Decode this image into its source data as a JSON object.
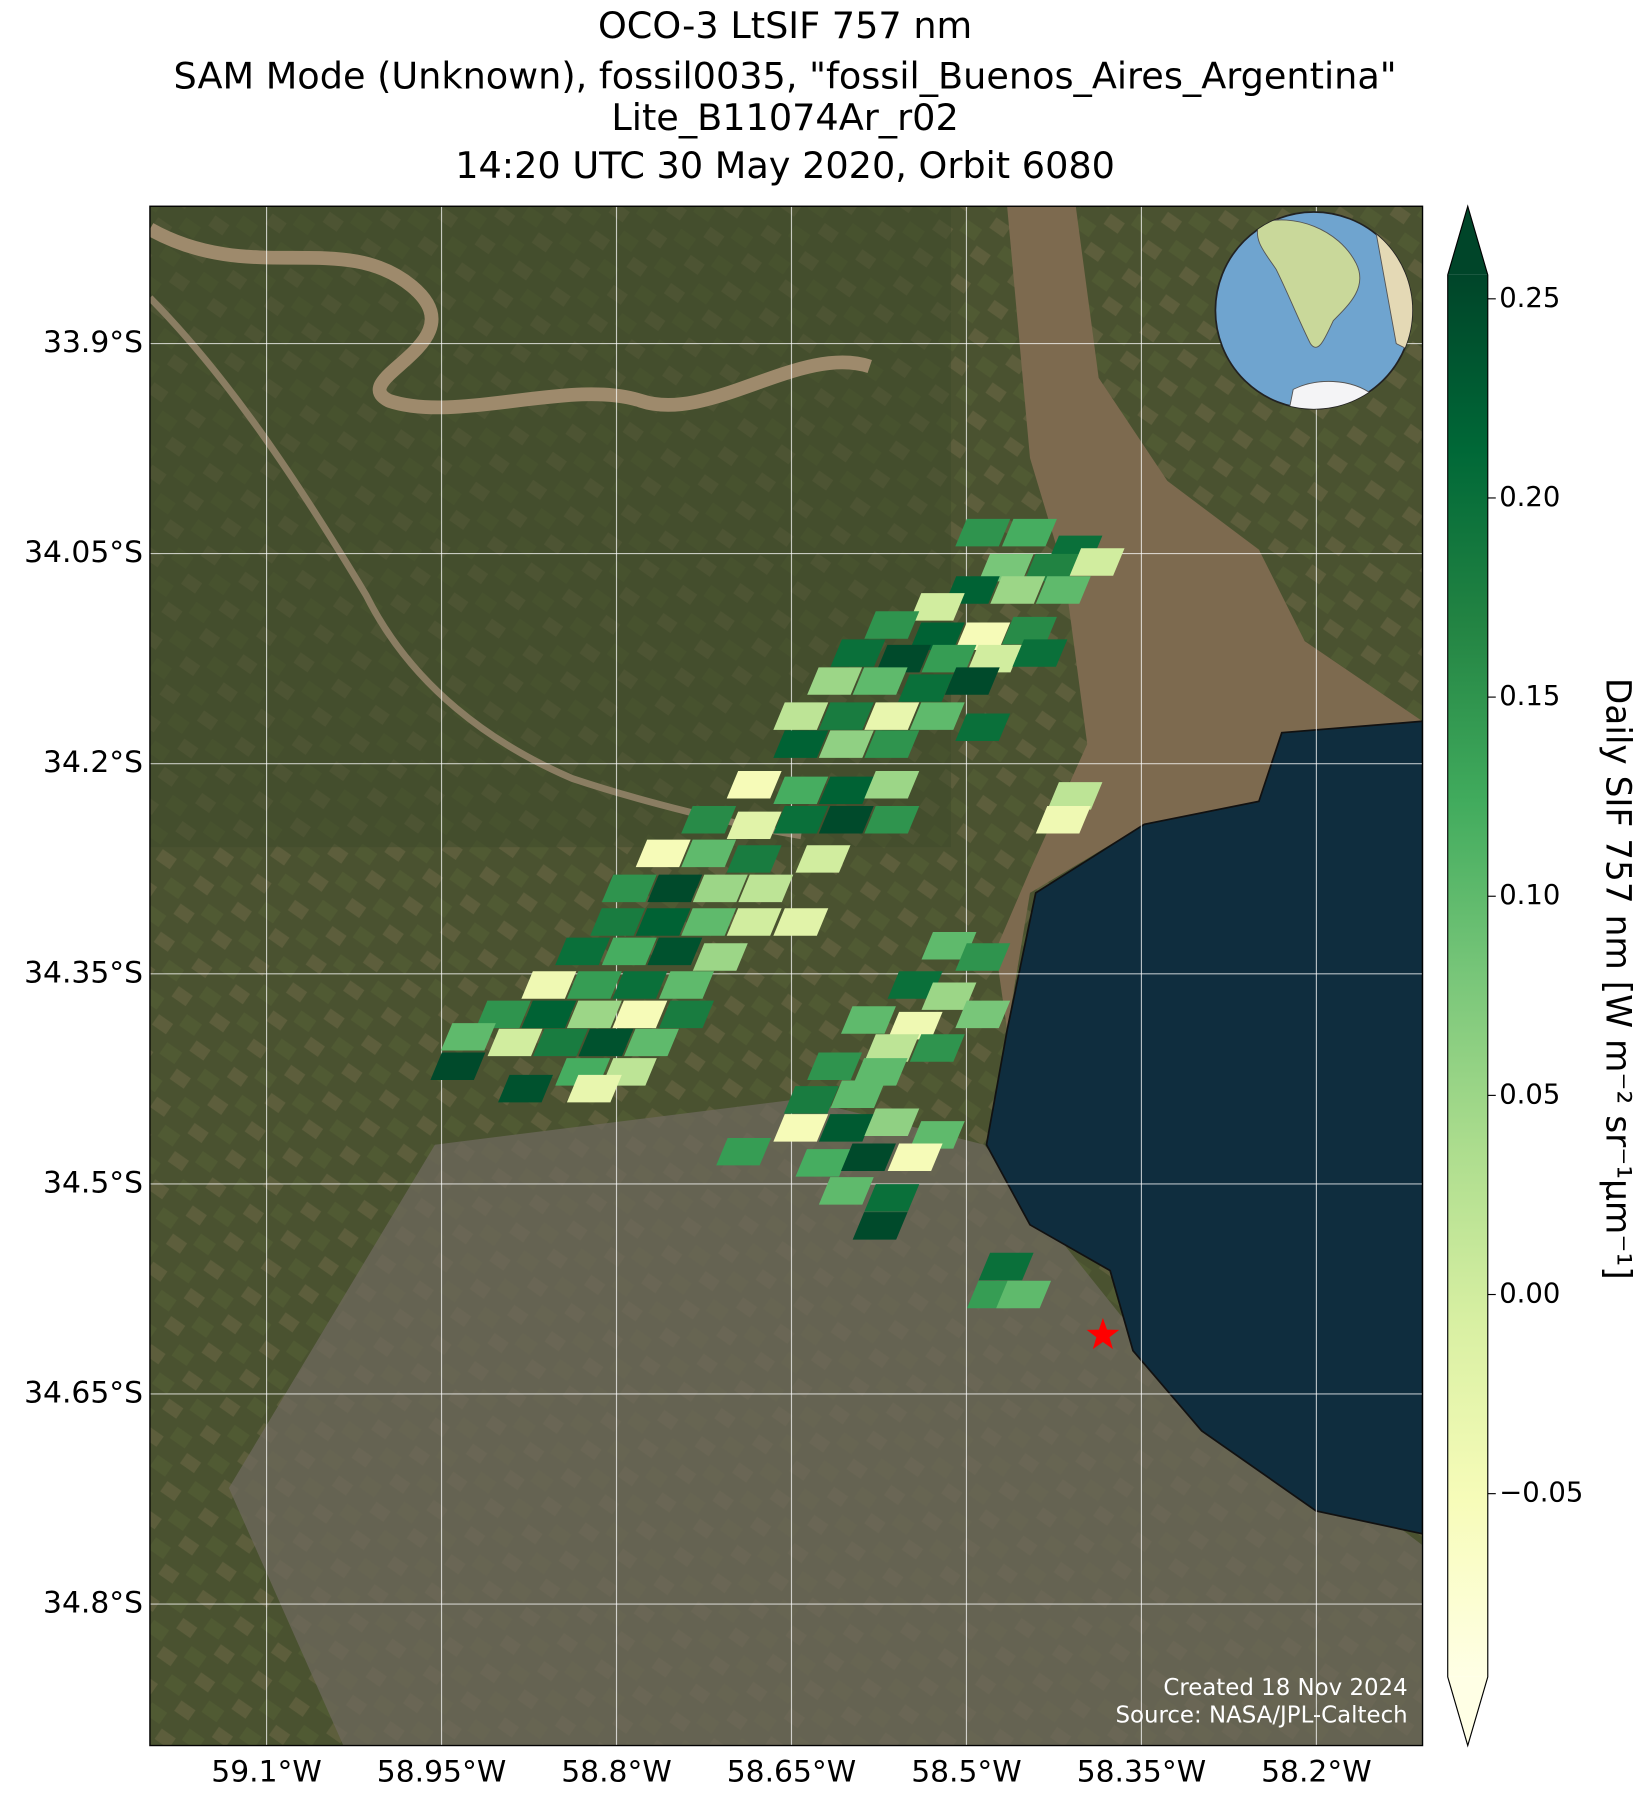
{
  "chart_data": {
    "type": "map",
    "title": [
      "OCO-3 LtSIF 757 nm",
      "SAM Mode (Unknown), fossil0035, \"fossil_Buenos_Aires_Argentina\"",
      "Lite_B11074Ar_r02",
      "14:20 UTC 30 May 2020, Orbit 6080"
    ],
    "xlim": [
      -59.2,
      -58.109
    ],
    "ylim": [
      -34.901,
      -33.802
    ],
    "grid": true,
    "xticks": [
      {
        "value": -59.1,
        "label": "59.1°W"
      },
      {
        "value": -58.95,
        "label": "58.95°W"
      },
      {
        "value": -58.8,
        "label": "58.8°W"
      },
      {
        "value": -58.65,
        "label": "58.65°W"
      },
      {
        "value": -58.5,
        "label": "58.5°W"
      },
      {
        "value": -58.35,
        "label": "58.35°W"
      },
      {
        "value": -58.2,
        "label": "58.2°W"
      }
    ],
    "yticks": [
      {
        "value": -33.9,
        "label": "33.9°S"
      },
      {
        "value": -34.05,
        "label": "34.05°S"
      },
      {
        "value": -34.2,
        "label": "34.2°S"
      },
      {
        "value": -34.35,
        "label": "34.35°S"
      },
      {
        "value": -34.5,
        "label": "34.5°S"
      },
      {
        "value": -34.65,
        "label": "34.65°S"
      },
      {
        "value": -34.8,
        "label": "34.8°S"
      }
    ],
    "colorbar": {
      "label": "Daily SIF 757 nm [W m⁻² sr⁻¹μm⁻¹]",
      "clim": [
        -0.096,
        0.256
      ],
      "colors": [
        "#ffffe5",
        "#f7fcb9",
        "#d9f0a3",
        "#addd8e",
        "#78c679",
        "#41ab5d",
        "#238443",
        "#006837",
        "#004529"
      ],
      "ticks": [
        {
          "value": -0.05,
          "label": "−0.05"
        },
        {
          "value": 0,
          "label": "0.00"
        },
        {
          "value": 0.05,
          "label": "0.05"
        },
        {
          "value": 0.1,
          "label": "0.10"
        },
        {
          "value": 0.15,
          "label": "0.15"
        },
        {
          "value": 0.2,
          "label": "0.20"
        },
        {
          "value": 0.25,
          "label": "0.25"
        }
      ]
    },
    "target": {
      "lon": -58.383,
      "lat": -34.608,
      "color": "#ff0000"
    },
    "soundings": {
      "lon": [
        -58.486,
        -58.446,
        -58.407,
        -58.466,
        -58.427,
        -58.388,
        -58.495,
        -58.456,
        -58.417,
        -58.525,
        -58.564,
        -58.525,
        -58.486,
        -58.446,
        -58.593,
        -58.554,
        -58.515,
        -58.476,
        -58.437,
        -58.613,
        -58.574,
        -58.535,
        -58.495,
        -58.642,
        -58.603,
        -58.564,
        -58.525,
        -58.486,
        -58.642,
        -58.603,
        -58.564,
        -58.682,
        -58.642,
        -58.603,
        -58.564,
        -58.407,
        -58.721,
        -58.682,
        -58.642,
        -58.603,
        -58.564,
        -58.417,
        -58.76,
        -58.721,
        -58.682,
        -58.623,
        -58.789,
        -58.75,
        -58.711,
        -58.672,
        -58.799,
        -58.76,
        -58.721,
        -58.682,
        -58.642,
        -58.829,
        -58.789,
        -58.75,
        -58.711,
        -58.858,
        -58.819,
        -58.78,
        -58.74,
        -58.897,
        -58.858,
        -58.819,
        -58.78,
        -58.74,
        -58.927,
        -58.887,
        -58.848,
        -58.809,
        -58.77,
        -58.936,
        -58.829,
        -58.789,
        -58.878,
        -58.819,
        -58.515,
        -58.486,
        -58.544,
        -58.515,
        -58.584,
        -58.544,
        -58.486,
        -58.564,
        -58.525,
        -58.613,
        -58.574,
        -58.633,
        -58.593,
        -58.642,
        -58.603,
        -58.564,
        -58.525,
        -58.691,
        -58.623,
        -58.584,
        -58.544,
        -58.603,
        -58.564,
        -58.574,
        -58.466,
        -58.476,
        -58.451
      ],
      "lat": [
        -34.035,
        -34.035,
        -34.047,
        -34.06,
        -34.06,
        -34.056,
        -34.076,
        -34.076,
        -34.076,
        -34.088,
        -34.101,
        -34.109,
        -34.109,
        -34.105,
        -34.121,
        -34.125,
        -34.125,
        -34.125,
        -34.121,
        -34.141,
        -34.141,
        -34.146,
        -34.141,
        -34.166,
        -34.166,
        -34.166,
        -34.166,
        -34.174,
        -34.186,
        -34.186,
        -34.186,
        -34.215,
        -34.219,
        -34.219,
        -34.215,
        -34.223,
        -34.24,
        -34.244,
        -34.24,
        -34.24,
        -34.24,
        -34.24,
        -34.264,
        -34.264,
        -34.268,
        -34.268,
        -34.289,
        -34.289,
        -34.289,
        -34.289,
        -34.313,
        -34.313,
        -34.313,
        -34.313,
        -34.313,
        -34.334,
        -34.334,
        -34.334,
        -34.338,
        -34.358,
        -34.358,
        -34.358,
        -34.358,
        -34.379,
        -34.379,
        -34.379,
        -34.379,
        -34.379,
        -34.395,
        -34.399,
        -34.399,
        -34.399,
        -34.399,
        -34.416,
        -34.42,
        -34.42,
        -34.432,
        -34.432,
        -34.33,
        -34.338,
        -34.358,
        -34.366,
        -34.383,
        -34.387,
        -34.379,
        -34.403,
        -34.403,
        -34.416,
        -34.42,
        -34.44,
        -34.436,
        -34.46,
        -34.46,
        -34.456,
        -34.465,
        -34.477,
        -34.485,
        -34.481,
        -34.481,
        -34.505,
        -34.51,
        -34.53,
        -34.559,
        -34.579,
        -34.579
      ],
      "values": [
        0.15,
        0.12,
        0.2,
        0.08,
        0.17,
        0,
        0.22,
        0.05,
        0.1,
        0,
        0.15,
        0.22,
        -0.05,
        0.16,
        0.2,
        0.25,
        0.14,
        0,
        0.2,
        0.05,
        0.1,
        0.2,
        0.25,
        0.02,
        0.18,
        -0.03,
        0.1,
        0.2,
        0.22,
        0.06,
        0.15,
        -0.05,
        0.12,
        0.22,
        0.05,
        0.02,
        0.16,
        -0.02,
        0.2,
        0.25,
        0.15,
        -0.04,
        -0.05,
        0.1,
        0.18,
        0,
        0.15,
        0.25,
        0.05,
        0.02,
        0.18,
        0.22,
        0.1,
        0,
        -0.02,
        0.2,
        0.12,
        0.24,
        0.05,
        -0.04,
        0.14,
        0.2,
        0.1,
        0.15,
        0.22,
        0.05,
        -0.05,
        0.18,
        0.1,
        0,
        0.18,
        0.24,
        0.1,
        0.25,
        0.12,
        0.02,
        0.24,
        -0.03,
        0.1,
        0.15,
        0.2,
        0.05,
        0.1,
        -0.04,
        0.08,
        0.02,
        0.15,
        0.15,
        0.1,
        0.18,
        0.1,
        -0.05,
        0.23,
        0.06,
        0.1,
        0.14,
        0.12,
        0.25,
        -0.05,
        0.1,
        0.2,
        0.25,
        0.2,
        0.14,
        0.1
      ]
    },
    "credits": [
      "Created 18 Nov 2024",
      "Source: NASA/JPL-Caltech"
    ]
  }
}
